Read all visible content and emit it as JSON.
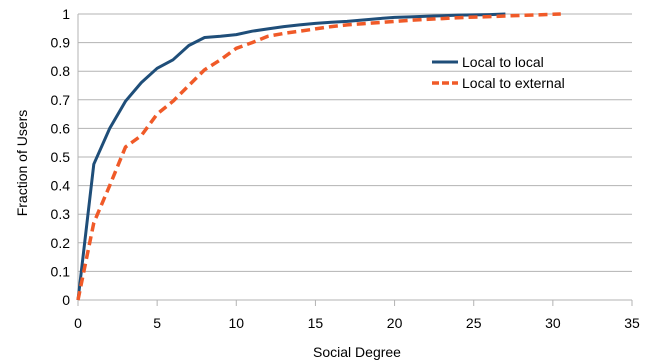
{
  "chart_data": {
    "type": "line",
    "xlabel": "Social Degree",
    "ylabel": "Fraction of Users",
    "xlim": [
      0,
      35
    ],
    "ylim": [
      0,
      1
    ],
    "x_ticks": [
      "0",
      "5",
      "10",
      "15",
      "20",
      "25",
      "30",
      "35"
    ],
    "y_ticks": [
      "0",
      "0.1",
      "0.2",
      "0.3",
      "0.4",
      "0.5",
      "0.6",
      "0.7",
      "0.8",
      "0.9",
      "1"
    ],
    "grid": "horizontal",
    "legend_position": "top-right",
    "series": [
      {
        "name": "Local to local",
        "color": "#1f4e79",
        "style": "solid",
        "x": [
          0,
          1,
          2,
          3,
          4,
          5,
          6,
          7,
          8,
          9,
          10,
          11,
          12,
          13,
          14,
          15,
          16,
          17,
          18,
          19,
          20,
          21,
          22,
          23,
          24,
          25,
          26,
          27
        ],
        "y": [
          0,
          0.475,
          0.6,
          0.695,
          0.76,
          0.81,
          0.84,
          0.89,
          0.918,
          0.922,
          0.928,
          0.94,
          0.948,
          0.956,
          0.962,
          0.967,
          0.971,
          0.974,
          0.979,
          0.984,
          0.988,
          0.99,
          0.992,
          0.994,
          0.996,
          0.997,
          0.998,
          1.0
        ]
      },
      {
        "name": "Local to external",
        "color": "#f05a28",
        "style": "dashed",
        "x": [
          0,
          1,
          2,
          3,
          4,
          5,
          6,
          7,
          8,
          9,
          10,
          11,
          12,
          13,
          14,
          15,
          16,
          17,
          18,
          19,
          20,
          21,
          22,
          23,
          24,
          25,
          26,
          27,
          28,
          29,
          30,
          30.5
        ],
        "y": [
          0,
          0.27,
          0.4,
          0.535,
          0.575,
          0.65,
          0.695,
          0.75,
          0.805,
          0.84,
          0.88,
          0.9,
          0.922,
          0.932,
          0.94,
          0.948,
          0.956,
          0.962,
          0.966,
          0.97,
          0.974,
          0.978,
          0.981,
          0.984,
          0.987,
          0.989,
          0.991,
          0.993,
          0.995,
          0.997,
          0.999,
          1.0
        ]
      }
    ]
  }
}
